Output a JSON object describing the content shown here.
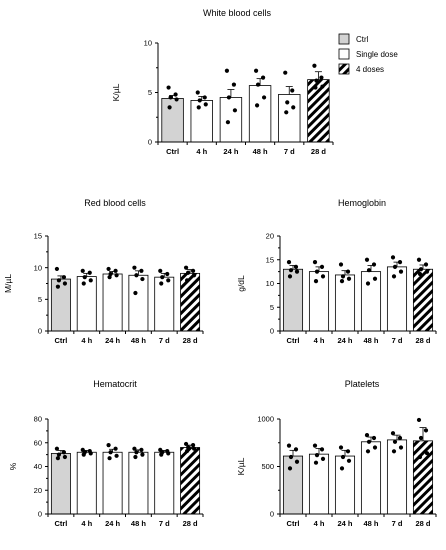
{
  "legend": {
    "position": "top-right",
    "entries": [
      {
        "label": "Ctrl",
        "pattern": "gray"
      },
      {
        "label": "Single dose",
        "pattern": "white"
      },
      {
        "label": "4 doses",
        "pattern": "hatch"
      }
    ]
  },
  "colors": {
    "ctrl": "#d3d3d3",
    "single": "#ffffff",
    "hatch": "#000000",
    "ink": "#000000"
  },
  "chart_data": [
    {
      "id": "wbc",
      "type": "bar",
      "title": "White blood cells",
      "ylabel": "K/µL",
      "ylim": [
        0,
        10
      ],
      "yticks": [
        0,
        5,
        10
      ],
      "categories": [
        "Ctrl",
        "4 h",
        "24 h",
        "48 h",
        "7 d",
        "28 d"
      ],
      "patterns": [
        "gray",
        "white",
        "white",
        "white",
        "white",
        "hatch"
      ],
      "values": [
        4.4,
        4.2,
        4.5,
        5.7,
        4.8,
        6.3
      ],
      "errors": [
        0.3,
        0.4,
        0.8,
        0.7,
        0.8,
        0.8
      ],
      "points": [
        [
          5.5,
          4.8,
          4.5,
          4.3,
          3.5
        ],
        [
          5.0,
          4.5,
          4.2,
          3.8,
          3.5
        ],
        [
          7.2,
          5.8,
          4.5,
          3.2,
          2.0
        ],
        [
          7.2,
          6.5,
          5.8,
          4.5,
          3.7
        ],
        [
          7.0,
          5.2,
          4.0,
          3.5,
          3.0
        ],
        [
          7.7,
          6.5,
          6.2,
          5.6,
          5.5
        ]
      ],
      "grid": false
    },
    {
      "id": "rbc",
      "type": "bar",
      "title": "Red blood cells",
      "ylabel": "M/µL",
      "ylim": [
        0,
        15
      ],
      "yticks": [
        0,
        5,
        10,
        15
      ],
      "categories": [
        "Ctrl",
        "4 h",
        "24 h",
        "48 h",
        "7 d",
        "28 d"
      ],
      "patterns": [
        "gray",
        "white",
        "white",
        "white",
        "white",
        "hatch"
      ],
      "values": [
        8.2,
        8.6,
        9.0,
        8.8,
        8.5,
        9.1
      ],
      "errors": [
        0.5,
        0.5,
        0.4,
        0.7,
        0.6,
        0.6
      ],
      "points": [
        [
          9.8,
          8.5,
          8.0,
          7.5,
          7.0
        ],
        [
          9.5,
          9.2,
          8.5,
          8.0,
          7.5
        ],
        [
          9.8,
          9.5,
          9.0,
          8.8,
          8.5
        ],
        [
          10.0,
          9.5,
          8.8,
          8.2,
          6.0
        ],
        [
          9.5,
          9.0,
          8.5,
          8.0,
          7.5
        ],
        [
          10.0,
          9.5,
          9.2,
          8.8,
          8.0
        ]
      ],
      "grid": false
    },
    {
      "id": "hgb",
      "type": "bar",
      "title": "Hemoglobin",
      "ylabel": "g/dL",
      "ylim": [
        0,
        20
      ],
      "yticks": [
        0,
        5,
        10,
        15,
        20
      ],
      "categories": [
        "Ctrl",
        "4 h",
        "24 h",
        "48 h",
        "7 d",
        "28 d"
      ],
      "patterns": [
        "gray",
        "white",
        "white",
        "white",
        "white",
        "hatch"
      ],
      "values": [
        13.0,
        12.5,
        11.8,
        12.5,
        13.5,
        13.0
      ],
      "errors": [
        0.8,
        1.0,
        0.9,
        1.3,
        1.0,
        0.9
      ],
      "points": [
        [
          14.5,
          13.5,
          12.8,
          12.5,
          11.5
        ],
        [
          14.5,
          13.5,
          12.5,
          11.5,
          10.5
        ],
        [
          14.0,
          12.5,
          11.5,
          11.0,
          10.5
        ],
        [
          15.0,
          14.0,
          12.8,
          11.0,
          10.0
        ],
        [
          15.5,
          14.5,
          13.5,
          12.5,
          11.5
        ],
        [
          15.0,
          14.0,
          13.0,
          12.5,
          12.0
        ]
      ],
      "grid": false
    },
    {
      "id": "hct",
      "type": "bar",
      "title": "Hematocrit",
      "ylabel": "%",
      "ylim": [
        0,
        80
      ],
      "yticks": [
        0,
        20,
        40,
        60,
        80
      ],
      "categories": [
        "Ctrl",
        "4 h",
        "24 h",
        "48 h",
        "7 d",
        "28 d"
      ],
      "patterns": [
        "gray",
        "white",
        "white",
        "white",
        "white",
        "hatch"
      ],
      "values": [
        51,
        52,
        52,
        52,
        52,
        56
      ],
      "errors": [
        2.5,
        1.5,
        2.5,
        2.0,
        1.5,
        2.0
      ],
      "points": [
        [
          55,
          52,
          50,
          48,
          47
        ],
        [
          54,
          53,
          52,
          51,
          50
        ],
        [
          58,
          55,
          52,
          49,
          47
        ],
        [
          55,
          54,
          52,
          50,
          48
        ],
        [
          54,
          53,
          52,
          51,
          50
        ],
        [
          59,
          58,
          56,
          55,
          53
        ]
      ],
      "grid": false
    },
    {
      "id": "plt",
      "type": "bar",
      "title": "Platelets",
      "ylabel": "K/µL",
      "ylim": [
        0,
        1000
      ],
      "yticks": [
        0,
        500,
        1000
      ],
      "categories": [
        "Ctrl",
        "4 h",
        "24 h",
        "48 h",
        "7 d",
        "28 d"
      ],
      "patterns": [
        "gray",
        "white",
        "white",
        "white",
        "white",
        "hatch"
      ],
      "values": [
        610,
        630,
        610,
        760,
        780,
        770
      ],
      "errors": [
        60,
        60,
        60,
        50,
        50,
        140
      ],
      "points": [
        [
          720,
          680,
          600,
          550,
          480
        ],
        [
          720,
          680,
          620,
          580,
          540
        ],
        [
          700,
          660,
          600,
          560,
          480
        ],
        [
          830,
          800,
          760,
          700,
          660
        ],
        [
          850,
          800,
          760,
          700,
          660
        ],
        [
          990,
          880,
          800,
          640,
          600
        ]
      ],
      "grid": false
    }
  ]
}
